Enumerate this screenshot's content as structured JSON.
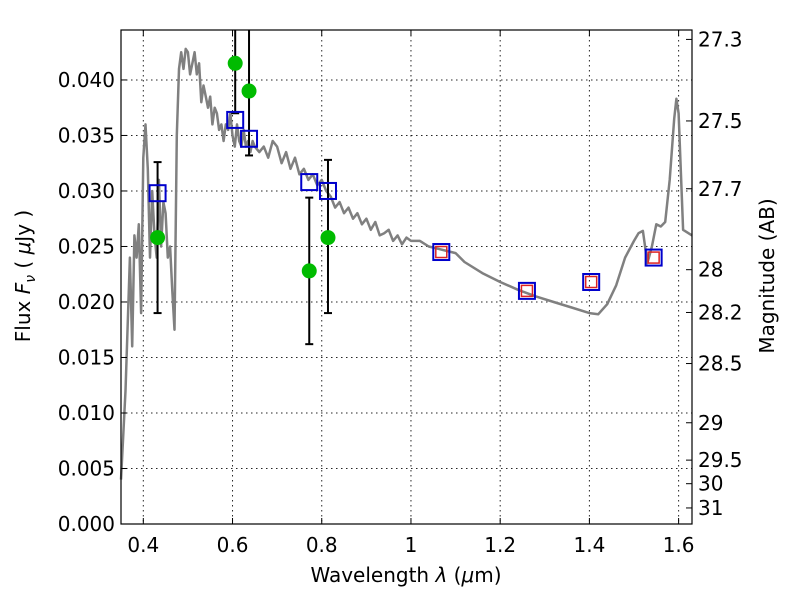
{
  "chart_data": {
    "type": "scatter",
    "xlabel": "Wavelength λ (μm)",
    "ylabel": "Flux F_ν (μJy)",
    "ylabel_right": "Magnitude (AB)",
    "xlim": [
      0.35,
      1.63
    ],
    "ylim": [
      0.0,
      0.0445
    ],
    "grid": true,
    "x_ticks": [
      0.4,
      0.6,
      0.8,
      1.0,
      1.2,
      1.4,
      1.6
    ],
    "x_tick_labels": [
      "0.4",
      "0.6",
      "0.8",
      "1",
      "1.2",
      "1.4",
      "1.6"
    ],
    "y_ticks": [
      0.0,
      0.005,
      0.01,
      0.015,
      0.02,
      0.025,
      0.03,
      0.035,
      0.04
    ],
    "y_tick_labels": [
      "0.000",
      "0.005",
      "0.010",
      "0.015",
      "0.020",
      "0.025",
      "0.030",
      "0.035",
      "0.040"
    ],
    "right_ticks": [
      {
        "label": "27.3",
        "mag": 27.3
      },
      {
        "label": "27.5",
        "mag": 27.5
      },
      {
        "label": "27.7",
        "mag": 27.7
      },
      {
        "label": "28",
        "mag": 28.0
      },
      {
        "label": "28.2",
        "mag": 28.2
      },
      {
        "label": "28.5",
        "mag": 28.5
      },
      {
        "label": "29",
        "mag": 29.0
      },
      {
        "label": "29.5",
        "mag": 29.5
      },
      {
        "label": "30",
        "mag": 30.0
      },
      {
        "label": "31",
        "mag": 31.0
      }
    ],
    "sed_model": {
      "color": "#808080",
      "points": [
        [
          0.35,
          0.004
        ],
        [
          0.36,
          0.012
        ],
        [
          0.37,
          0.024
        ],
        [
          0.375,
          0.016
        ],
        [
          0.38,
          0.026
        ],
        [
          0.385,
          0.024
        ],
        [
          0.39,
          0.027
        ],
        [
          0.395,
          0.019
        ],
        [
          0.4,
          0.033
        ],
        [
          0.405,
          0.036
        ],
        [
          0.41,
          0.032
        ],
        [
          0.415,
          0.024
        ],
        [
          0.42,
          0.03
        ],
        [
          0.425,
          0.026
        ],
        [
          0.43,
          0.024
        ],
        [
          0.435,
          0.031
        ],
        [
          0.44,
          0.025
        ],
        [
          0.445,
          0.029
        ],
        [
          0.45,
          0.028
        ],
        [
          0.455,
          0.024
        ],
        [
          0.46,
          0.025
        ],
        [
          0.465,
          0.021
        ],
        [
          0.47,
          0.0175
        ],
        [
          0.475,
          0.035
        ],
        [
          0.48,
          0.041
        ],
        [
          0.485,
          0.0425
        ],
        [
          0.49,
          0.041
        ],
        [
          0.495,
          0.0428
        ],
        [
          0.5,
          0.0425
        ],
        [
          0.505,
          0.0405
        ],
        [
          0.51,
          0.0415
        ],
        [
          0.515,
          0.0425
        ],
        [
          0.52,
          0.0405
        ],
        [
          0.525,
          0.0415
        ],
        [
          0.53,
          0.038
        ],
        [
          0.535,
          0.0395
        ],
        [
          0.54,
          0.0385
        ],
        [
          0.545,
          0.0375
        ],
        [
          0.55,
          0.0385
        ],
        [
          0.555,
          0.036
        ],
        [
          0.56,
          0.0375
        ],
        [
          0.565,
          0.037
        ],
        [
          0.57,
          0.0355
        ],
        [
          0.575,
          0.036
        ],
        [
          0.58,
          0.0345
        ],
        [
          0.585,
          0.036
        ],
        [
          0.59,
          0.0355
        ],
        [
          0.595,
          0.037
        ],
        [
          0.6,
          0.035
        ],
        [
          0.605,
          0.034
        ],
        [
          0.61,
          0.036
        ],
        [
          0.615,
          0.0345
        ],
        [
          0.62,
          0.034
        ],
        [
          0.625,
          0.0355
        ],
        [
          0.63,
          0.034
        ],
        [
          0.635,
          0.0345
        ],
        [
          0.64,
          0.0335
        ],
        [
          0.645,
          0.0345
        ],
        [
          0.65,
          0.034
        ],
        [
          0.66,
          0.0335
        ],
        [
          0.67,
          0.034
        ],
        [
          0.68,
          0.033
        ],
        [
          0.69,
          0.0345
        ],
        [
          0.7,
          0.034
        ],
        [
          0.71,
          0.0325
        ],
        [
          0.72,
          0.0335
        ],
        [
          0.73,
          0.032
        ],
        [
          0.74,
          0.033
        ],
        [
          0.75,
          0.0315
        ],
        [
          0.76,
          0.032
        ],
        [
          0.77,
          0.031
        ],
        [
          0.78,
          0.0315
        ],
        [
          0.79,
          0.0305
        ],
        [
          0.8,
          0.031
        ],
        [
          0.81,
          0.03
        ],
        [
          0.82,
          0.0295
        ],
        [
          0.83,
          0.0285
        ],
        [
          0.84,
          0.029
        ],
        [
          0.85,
          0.028
        ],
        [
          0.86,
          0.0285
        ],
        [
          0.87,
          0.0275
        ],
        [
          0.88,
          0.028
        ],
        [
          0.89,
          0.027
        ],
        [
          0.9,
          0.0275
        ],
        [
          0.91,
          0.0265
        ],
        [
          0.92,
          0.0272
        ],
        [
          0.93,
          0.026
        ],
        [
          0.94,
          0.0262
        ],
        [
          0.95,
          0.0265
        ],
        [
          0.96,
          0.0255
        ],
        [
          0.97,
          0.026
        ],
        [
          0.98,
          0.0252
        ],
        [
          0.99,
          0.0258
        ],
        [
          1.0,
          0.0255
        ],
        [
          1.02,
          0.0255
        ],
        [
          1.04,
          0.025
        ],
        [
          1.06,
          0.0248
        ],
        [
          1.08,
          0.0246
        ],
        [
          1.1,
          0.0244
        ],
        [
          1.12,
          0.0236
        ],
        [
          1.16,
          0.0226
        ],
        [
          1.2,
          0.0218
        ],
        [
          1.24,
          0.0211
        ],
        [
          1.28,
          0.0205
        ],
        [
          1.32,
          0.02
        ],
        [
          1.36,
          0.0195
        ],
        [
          1.4,
          0.019
        ],
        [
          1.42,
          0.0189
        ],
        [
          1.44,
          0.0198
        ],
        [
          1.46,
          0.0215
        ],
        [
          1.48,
          0.024
        ],
        [
          1.5,
          0.0255
        ],
        [
          1.51,
          0.0262
        ],
        [
          1.52,
          0.0264
        ],
        [
          1.53,
          0.0235
        ],
        [
          1.54,
          0.025
        ],
        [
          1.55,
          0.027
        ],
        [
          1.56,
          0.0268
        ],
        [
          1.57,
          0.0272
        ],
        [
          1.58,
          0.031
        ],
        [
          1.59,
          0.0365
        ],
        [
          1.595,
          0.0383
        ],
        [
          1.6,
          0.037
        ],
        [
          1.61,
          0.0265
        ],
        [
          1.63,
          0.026
        ]
      ]
    },
    "observed": {
      "color": "#00bb00",
      "points": [
        {
          "x": 0.432,
          "y": 0.0258,
          "yerr_low": 0.019,
          "yerr_high": 0.0326
        },
        {
          "x": 0.606,
          "y": 0.0415,
          "yerr_low": 0.037,
          "yerr_high": 0.0445
        },
        {
          "x": 0.637,
          "y": 0.039,
          "yerr_low": 0.0332,
          "yerr_high": 0.0445
        },
        {
          "x": 0.772,
          "y": 0.0228,
          "yerr_low": 0.0162,
          "yerr_high": 0.0294
        },
        {
          "x": 0.814,
          "y": 0.0258,
          "yerr_low": 0.019,
          "yerr_high": 0.0328
        }
      ]
    },
    "synthetic_blue": {
      "color": "#0000cc",
      "points": [
        {
          "x": 0.432,
          "y": 0.0298
        },
        {
          "x": 0.606,
          "y": 0.0364
        },
        {
          "x": 0.637,
          "y": 0.0347
        },
        {
          "x": 0.772,
          "y": 0.0308
        },
        {
          "x": 0.814,
          "y": 0.03
        },
        {
          "x": 1.068,
          "y": 0.0245
        },
        {
          "x": 1.26,
          "y": 0.021
        },
        {
          "x": 1.404,
          "y": 0.0218
        },
        {
          "x": 1.544,
          "y": 0.024
        }
      ]
    },
    "synthetic_red": {
      "color": "#dd2222",
      "points": [
        {
          "x": 1.068,
          "y": 0.0245
        },
        {
          "x": 1.26,
          "y": 0.021
        },
        {
          "x": 1.404,
          "y": 0.0218
        },
        {
          "x": 1.544,
          "y": 0.024
        }
      ]
    }
  }
}
